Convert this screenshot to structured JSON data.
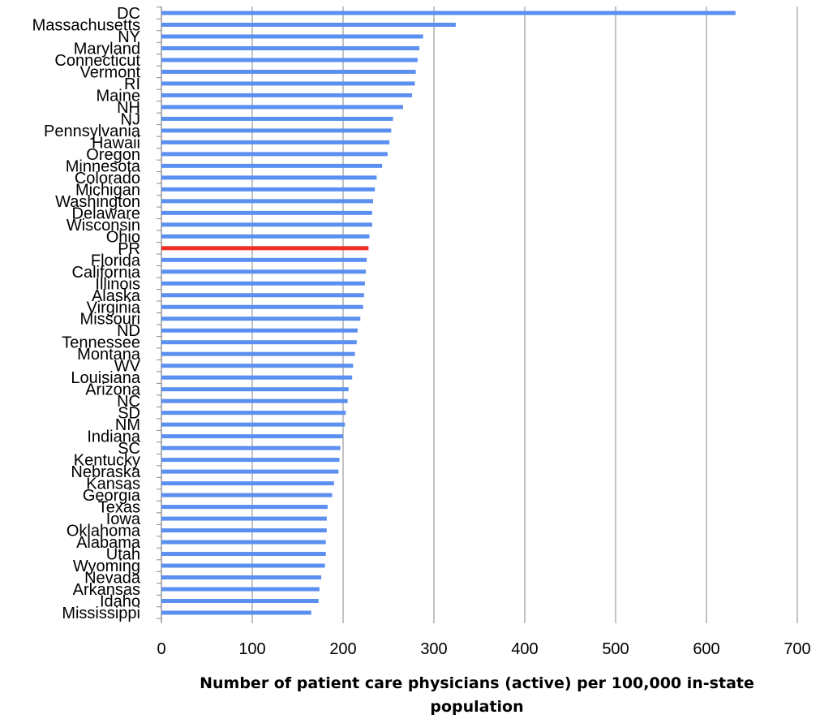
{
  "chart_data": {
    "type": "bar",
    "orientation": "horizontal",
    "categories": [
      "DC",
      "Massachusetts",
      "NY",
      "Maryland",
      "Connecticut",
      "Vermont",
      "RI",
      "Maine",
      "NH",
      "NJ",
      "Pennsylvania",
      "Hawaii",
      "Oregon",
      "Minnesota",
      "Colorado",
      "Michigan",
      "Washington",
      "Delaware",
      "Wisconsin",
      "Ohio",
      "PR",
      "Florida",
      "California",
      "Illinois",
      "Alaska",
      "Virginia",
      "Missouri",
      "ND",
      "Tennessee",
      "Montana",
      "WV",
      "Louisiana",
      "Arizona",
      "NC",
      "SD",
      "NM",
      "Indiana",
      "SC",
      "Kentucky",
      "Nebraska",
      "Kansas",
      "Georgia",
      "Texas",
      "Iowa",
      "Oklahoma",
      "Alabama",
      "Utah",
      "Wyoming",
      "Nevada",
      "Arkansas",
      "Idaho",
      "Mississippi"
    ],
    "values": [
      632,
      324,
      288,
      284,
      282,
      280,
      279,
      276,
      266,
      255,
      253,
      251,
      249,
      243,
      237,
      235,
      233,
      232,
      232,
      229,
      228,
      226,
      225,
      224,
      223,
      222,
      219,
      216,
      215,
      213,
      211,
      210,
      206,
      205,
      203,
      202,
      200,
      197,
      196,
      195,
      190,
      188,
      183,
      182,
      182,
      181,
      181,
      180,
      176,
      174,
      173,
      165
    ],
    "highlight_category": "PR",
    "colors": {
      "bar": "#5b8ff0",
      "highlight": "#ee3024",
      "grid": "#9a9a9a"
    },
    "xlim": [
      0,
      700
    ],
    "xticks": [
      0,
      100,
      200,
      300,
      400,
      500,
      600,
      700
    ],
    "grid": true,
    "xlabel_lines": [
      "Number of patient care physicians (active) per 100,000 in-state",
      "population"
    ]
  }
}
